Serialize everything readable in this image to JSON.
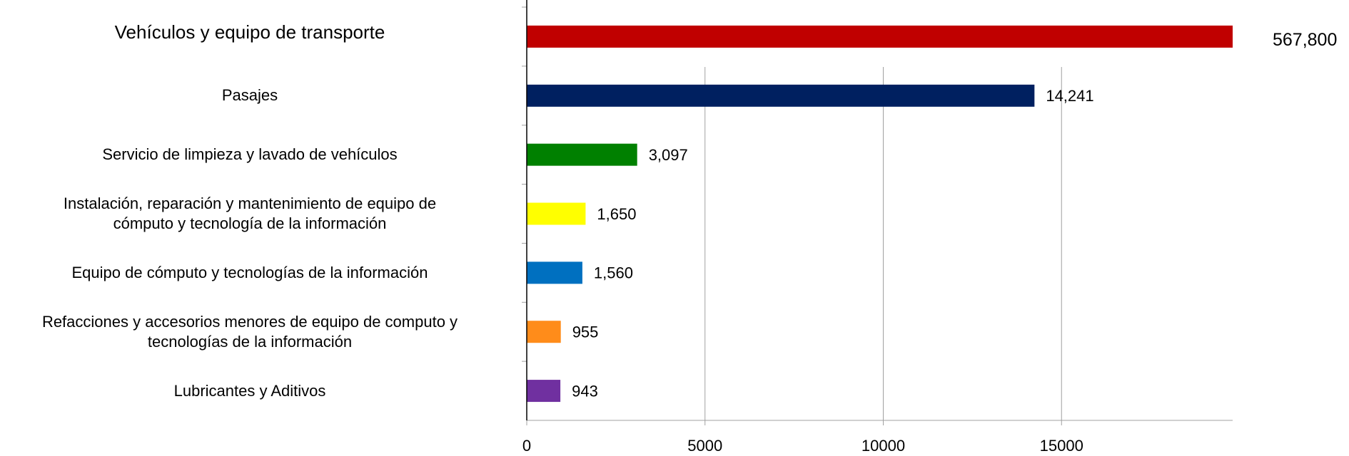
{
  "chart_data": {
    "type": "bar",
    "orientation": "horizontal",
    "categories": [
      "Vehículos y equipo de transporte",
      "Pasajes",
      "Servicio de limpieza y lavado de vehículos",
      "Instalación, reparación y mantenimiento de equipo de\ncómputo y tecnología de la información",
      "Equipo de cómputo y tecnologías de la información",
      "Refacciones y accesorios menores de equipo de computo y\ntecnologías de la información",
      "Lubricantes y Aditivos"
    ],
    "values": [
      567800,
      14241,
      3097,
      1650,
      1560,
      955,
      943
    ],
    "value_labels": [
      "567,800",
      "14,241",
      "3,097",
      "1,650",
      "1,560",
      "955",
      "943"
    ],
    "colors": [
      "#c00000",
      "#002060",
      "#008000",
      "#ffff00",
      "#0070c0",
      "#ff8c1a",
      "#7030a0"
    ],
    "xlim": [
      0,
      19800
    ],
    "xticks": [
      0,
      5000,
      10000,
      15000
    ],
    "grid": true
  }
}
